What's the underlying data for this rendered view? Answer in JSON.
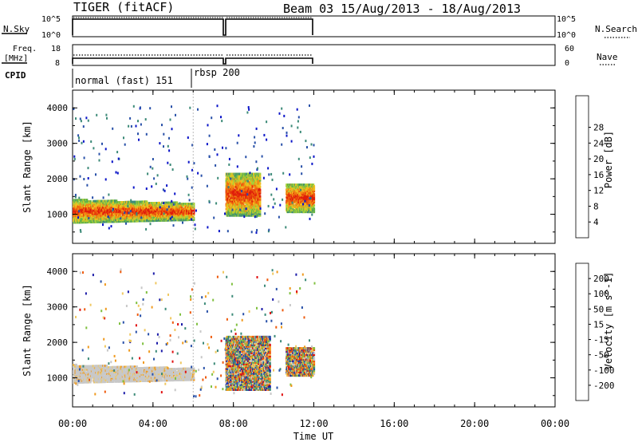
{
  "header": {
    "site": "TIGER (fitACF)",
    "beam_dates": "Beam 03 15/Aug/2013 - 18/Aug/2013"
  },
  "strip_labels": {
    "nsky": "N.Sky",
    "nsky_hi": "10^5",
    "nsky_lo": "10^0",
    "nsearch": "N.Search",
    "nsearch_hi": "10^5",
    "nsearch_lo": "10^0",
    "freq": "Freq.",
    "freq_unit": "[MHz]",
    "freq_hi": "18",
    "freq_lo": "8",
    "nave": "Nave",
    "nave_hi": "60",
    "nave_lo": "0",
    "cpid": "CPID",
    "cpid_mode1": "normal (fast) 151",
    "cpid_mode2": "rbsp 200"
  },
  "colors": {
    "power": [
      "#0a14c8",
      "#2850a8",
      "#3c8a78",
      "#63b24a",
      "#a5cf3a",
      "#f0c01e",
      "#f08c14",
      "#ee5a0c",
      "#e01e0a"
    ],
    "velocity": [
      "#e01010",
      "#ee5a0c",
      "#f09a1e",
      "#f0c860",
      "#c8c8c8",
      "#80c040",
      "#3c8a78",
      "#2850a8",
      "#1a1aa8"
    ],
    "gray": "#c8c8c8"
  },
  "chart_data": [
    {
      "type": "heatmap",
      "panel": "power",
      "ylabel": "Slant Range [km]",
      "ylim": [
        180,
        4500
      ],
      "yticks": [
        "1000",
        "2000",
        "3000",
        "4000"
      ],
      "xlim_hours": [
        0,
        24
      ],
      "cbar_label": "Power [dB]",
      "cbar_ticks": [
        "4",
        "8",
        "12",
        "16",
        "20",
        "24",
        "28"
      ],
      "summary_clusters": [
        {
          "t_start": 0.0,
          "t_end": 6.0,
          "range_km": [
            800,
            1450
          ],
          "power_db": 20
        },
        {
          "t_start": 7.6,
          "t_end": 9.3,
          "range_km": [
            1000,
            2200
          ],
          "power_db": 24
        },
        {
          "t_start": 10.6,
          "t_end": 12.0,
          "range_km": [
            1100,
            1900
          ],
          "power_db": 22
        }
      ]
    },
    {
      "type": "heatmap",
      "panel": "velocity",
      "ylabel": "Slant Range [km]",
      "ylim": [
        180,
        4500
      ],
      "yticks": [
        "1000",
        "2000",
        "3000",
        "4000"
      ],
      "xlim_hours": [
        0,
        24
      ],
      "cbar_label": "Velocity [m s^-1]",
      "cbar_ticks": [
        "-200",
        "-100",
        "-50",
        "-15",
        "15",
        "50",
        "100",
        "200"
      ],
      "summary_clusters": [
        {
          "t_start": 0.0,
          "t_end": 6.0,
          "range_km": [
            900,
            1400
          ],
          "velocity": -15
        },
        {
          "t_start": 7.6,
          "t_end": 9.8,
          "range_km": [
            700,
            2200
          ],
          "velocity": 100
        },
        {
          "t_start": 10.6,
          "t_end": 12.0,
          "range_km": [
            1100,
            1900
          ],
          "velocity": 50
        }
      ]
    }
  ],
  "x_axis": {
    "ticks": [
      "00:00",
      "04:00",
      "08:00",
      "12:00",
      "16:00",
      "20:00",
      "00:00"
    ],
    "label": "Time UT"
  }
}
